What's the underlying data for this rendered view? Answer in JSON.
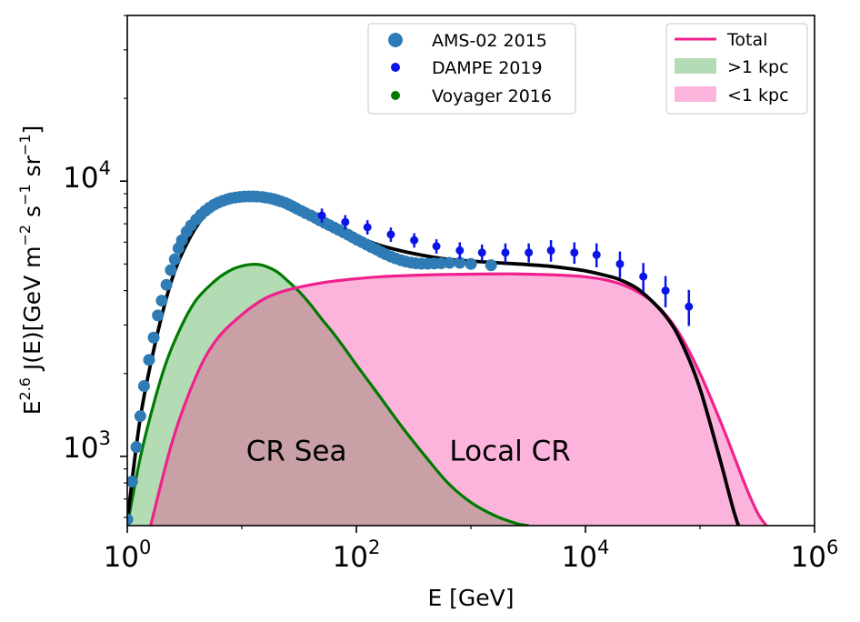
{
  "chart_data": {
    "type": "line",
    "xscale": "log",
    "yscale": "log",
    "xlim": [
      1,
      1000000
    ],
    "ylim": [
      560,
      40000
    ],
    "xlabel": "E [GeV]",
    "ylabel_parts": {
      "base": "E",
      "exp": "2.6",
      "mid": " J(E)[GeV m",
      "exp_m": "−2",
      "s": " s",
      "exp_s": "−1",
      "sr": " sr",
      "exp_sr": "−1",
      "end": "]"
    },
    "xticks": [
      {
        "value": 1,
        "base": "10",
        "exp": "0"
      },
      {
        "value": 100,
        "base": "10",
        "exp": "2"
      },
      {
        "value": 10000,
        "base": "10",
        "exp": "4"
      },
      {
        "value": 1000000,
        "base": "10",
        "exp": "6"
      }
    ],
    "yticks": [
      {
        "value": 1000,
        "base": "10",
        "exp": "3"
      },
      {
        "value": 10000,
        "base": "10",
        "exp": "4"
      }
    ],
    "annotations": [
      {
        "text": "CR Sea",
        "x": 30,
        "y": 1050
      },
      {
        "text": "Local CR",
        "x": 2200,
        "y": 1050
      }
    ],
    "colors": {
      "ams": "#2e7bb5",
      "dampe": "#0a14e6",
      "voyager": "#007a00",
      "total": "#000000",
      "pink_line": "#f0208c",
      "green_fill": "#b4dcb4",
      "pink_fill": "#fcb4dc",
      "overlap_fill": "#c8a0a5"
    },
    "legend_left": [
      {
        "label": "AMS-02 2015",
        "series": "ams"
      },
      {
        "label": "DAMPE 2019",
        "series": "dampe"
      },
      {
        "label": "Voyager 2016",
        "series": "voyager"
      }
    ],
    "legend_right": [
      {
        "label": "Total",
        "series": "total_pink"
      },
      {
        "label": ">1 kpc",
        "series": "green_fill"
      },
      {
        "label": "<1 kpc",
        "series": "pink_fill"
      }
    ],
    "series": {
      "ams": {
        "name": "AMS-02 2015",
        "x": [
          1.0,
          1.1,
          1.2,
          1.3,
          1.4,
          1.55,
          1.7,
          1.85,
          2.0,
          2.2,
          2.4,
          2.6,
          2.8,
          3.0,
          3.3,
          3.6,
          4.0,
          4.4,
          4.8,
          5.2,
          5.7,
          6.2,
          6.8,
          7.4,
          8.0,
          8.8,
          9.6,
          10.5,
          11.5,
          12.5,
          13.5,
          15,
          16,
          17.5,
          19,
          20.5,
          22,
          24,
          26,
          28,
          30,
          33,
          36,
          40,
          44,
          48,
          53,
          58,
          64,
          70,
          77,
          85,
          93,
          102,
          112,
          123,
          135,
          150,
          165,
          180,
          200,
          220,
          245,
          270,
          300,
          330,
          370,
          420,
          480,
          550,
          650,
          800,
          1000,
          1500
        ],
        "y": [
          590,
          810,
          1080,
          1400,
          1800,
          2240,
          2700,
          3250,
          3680,
          4200,
          4750,
          5200,
          5700,
          6100,
          6550,
          6900,
          7250,
          7550,
          7800,
          8000,
          8200,
          8350,
          8480,
          8580,
          8660,
          8720,
          8760,
          8790,
          8800,
          8800,
          8790,
          8760,
          8720,
          8670,
          8600,
          8520,
          8440,
          8330,
          8200,
          8080,
          7950,
          7800,
          7650,
          7500,
          7350,
          7200,
          7050,
          6920,
          6780,
          6650,
          6520,
          6380,
          6250,
          6120,
          6000,
          5880,
          5760,
          5640,
          5520,
          5420,
          5320,
          5240,
          5160,
          5100,
          5060,
          5030,
          5010,
          5010,
          5020,
          5030,
          5050,
          5050,
          5000,
          4950
        ]
      },
      "dampe": {
        "name": "DAMPE 2019",
        "x": [
          50,
          80,
          125,
          200,
          320,
          500,
          800,
          1250,
          2000,
          3200,
          5000,
          8000,
          12500,
          20000,
          32000,
          50000,
          80000
        ],
        "y": [
          7500,
          7100,
          6800,
          6400,
          6100,
          5800,
          5600,
          5500,
          5500,
          5500,
          5600,
          5500,
          5400,
          5000,
          4500,
          4000,
          3500
        ],
        "err": [
          0.06,
          0.06,
          0.06,
          0.06,
          0.06,
          0.06,
          0.07,
          0.07,
          0.08,
          0.08,
          0.09,
          0.09,
          0.1,
          0.11,
          0.12,
          0.13,
          0.15
        ]
      },
      "total": {
        "name": "Total",
        "x": [
          1.0,
          1.3,
          1.8,
          2.5,
          3.5,
          5,
          7,
          10,
          13,
          18,
          25,
          35,
          50,
          70,
          100,
          150,
          200,
          300,
          500,
          700,
          1000,
          1500,
          2000,
          3000,
          5000,
          7000,
          10000,
          15000,
          20000,
          30000,
          50000,
          70000,
          100000,
          150000,
          200000,
          250000,
          300000,
          340000
        ],
        "y": [
          580,
          1380,
          2700,
          4500,
          6200,
          7700,
          8500,
          8800,
          8780,
          8650,
          8350,
          7900,
          7300,
          6800,
          6300,
          5900,
          5700,
          5480,
          5270,
          5180,
          5120,
          5070,
          5030,
          4980,
          4900,
          4820,
          4720,
          4540,
          4380,
          4000,
          3240,
          2560,
          1760,
          970,
          620,
          480,
          420,
          400
        ]
      },
      "local": {
        "name": "<1 kpc",
        "x": [
          1.6,
          2.5,
          4,
          6,
          10,
          16,
          25,
          40,
          63,
          100,
          160,
          250,
          400,
          630,
          1000,
          1600,
          2500,
          4000,
          6300,
          10000,
          16000,
          25000,
          40000,
          63000,
          100000,
          160000,
          250000,
          320000,
          380000
        ],
        "y": [
          560,
          1150,
          1960,
          2650,
          3270,
          3750,
          4020,
          4200,
          4330,
          4420,
          4490,
          4530,
          4560,
          4580,
          4590,
          4600,
          4600,
          4580,
          4550,
          4490,
          4350,
          4080,
          3600,
          2880,
          2000,
          1260,
          780,
          620,
          560
        ]
      },
      "sea": {
        "name": ">1 kpc",
        "x": [
          1.0,
          1.3,
          1.7,
          2.2,
          3,
          4,
          5.5,
          7,
          9,
          12,
          15,
          20,
          25,
          32,
          40,
          50,
          63,
          80,
          100,
          160,
          250,
          400,
          630,
          1000,
          1600,
          2500,
          3200
        ],
        "y": [
          560,
          990,
          1550,
          2210,
          3000,
          3700,
          4250,
          4600,
          4850,
          4980,
          4950,
          4700,
          4350,
          3950,
          3550,
          3150,
          2800,
          2450,
          2150,
          1650,
          1280,
          1000,
          800,
          680,
          610,
          570,
          560
        ]
      }
    }
  }
}
